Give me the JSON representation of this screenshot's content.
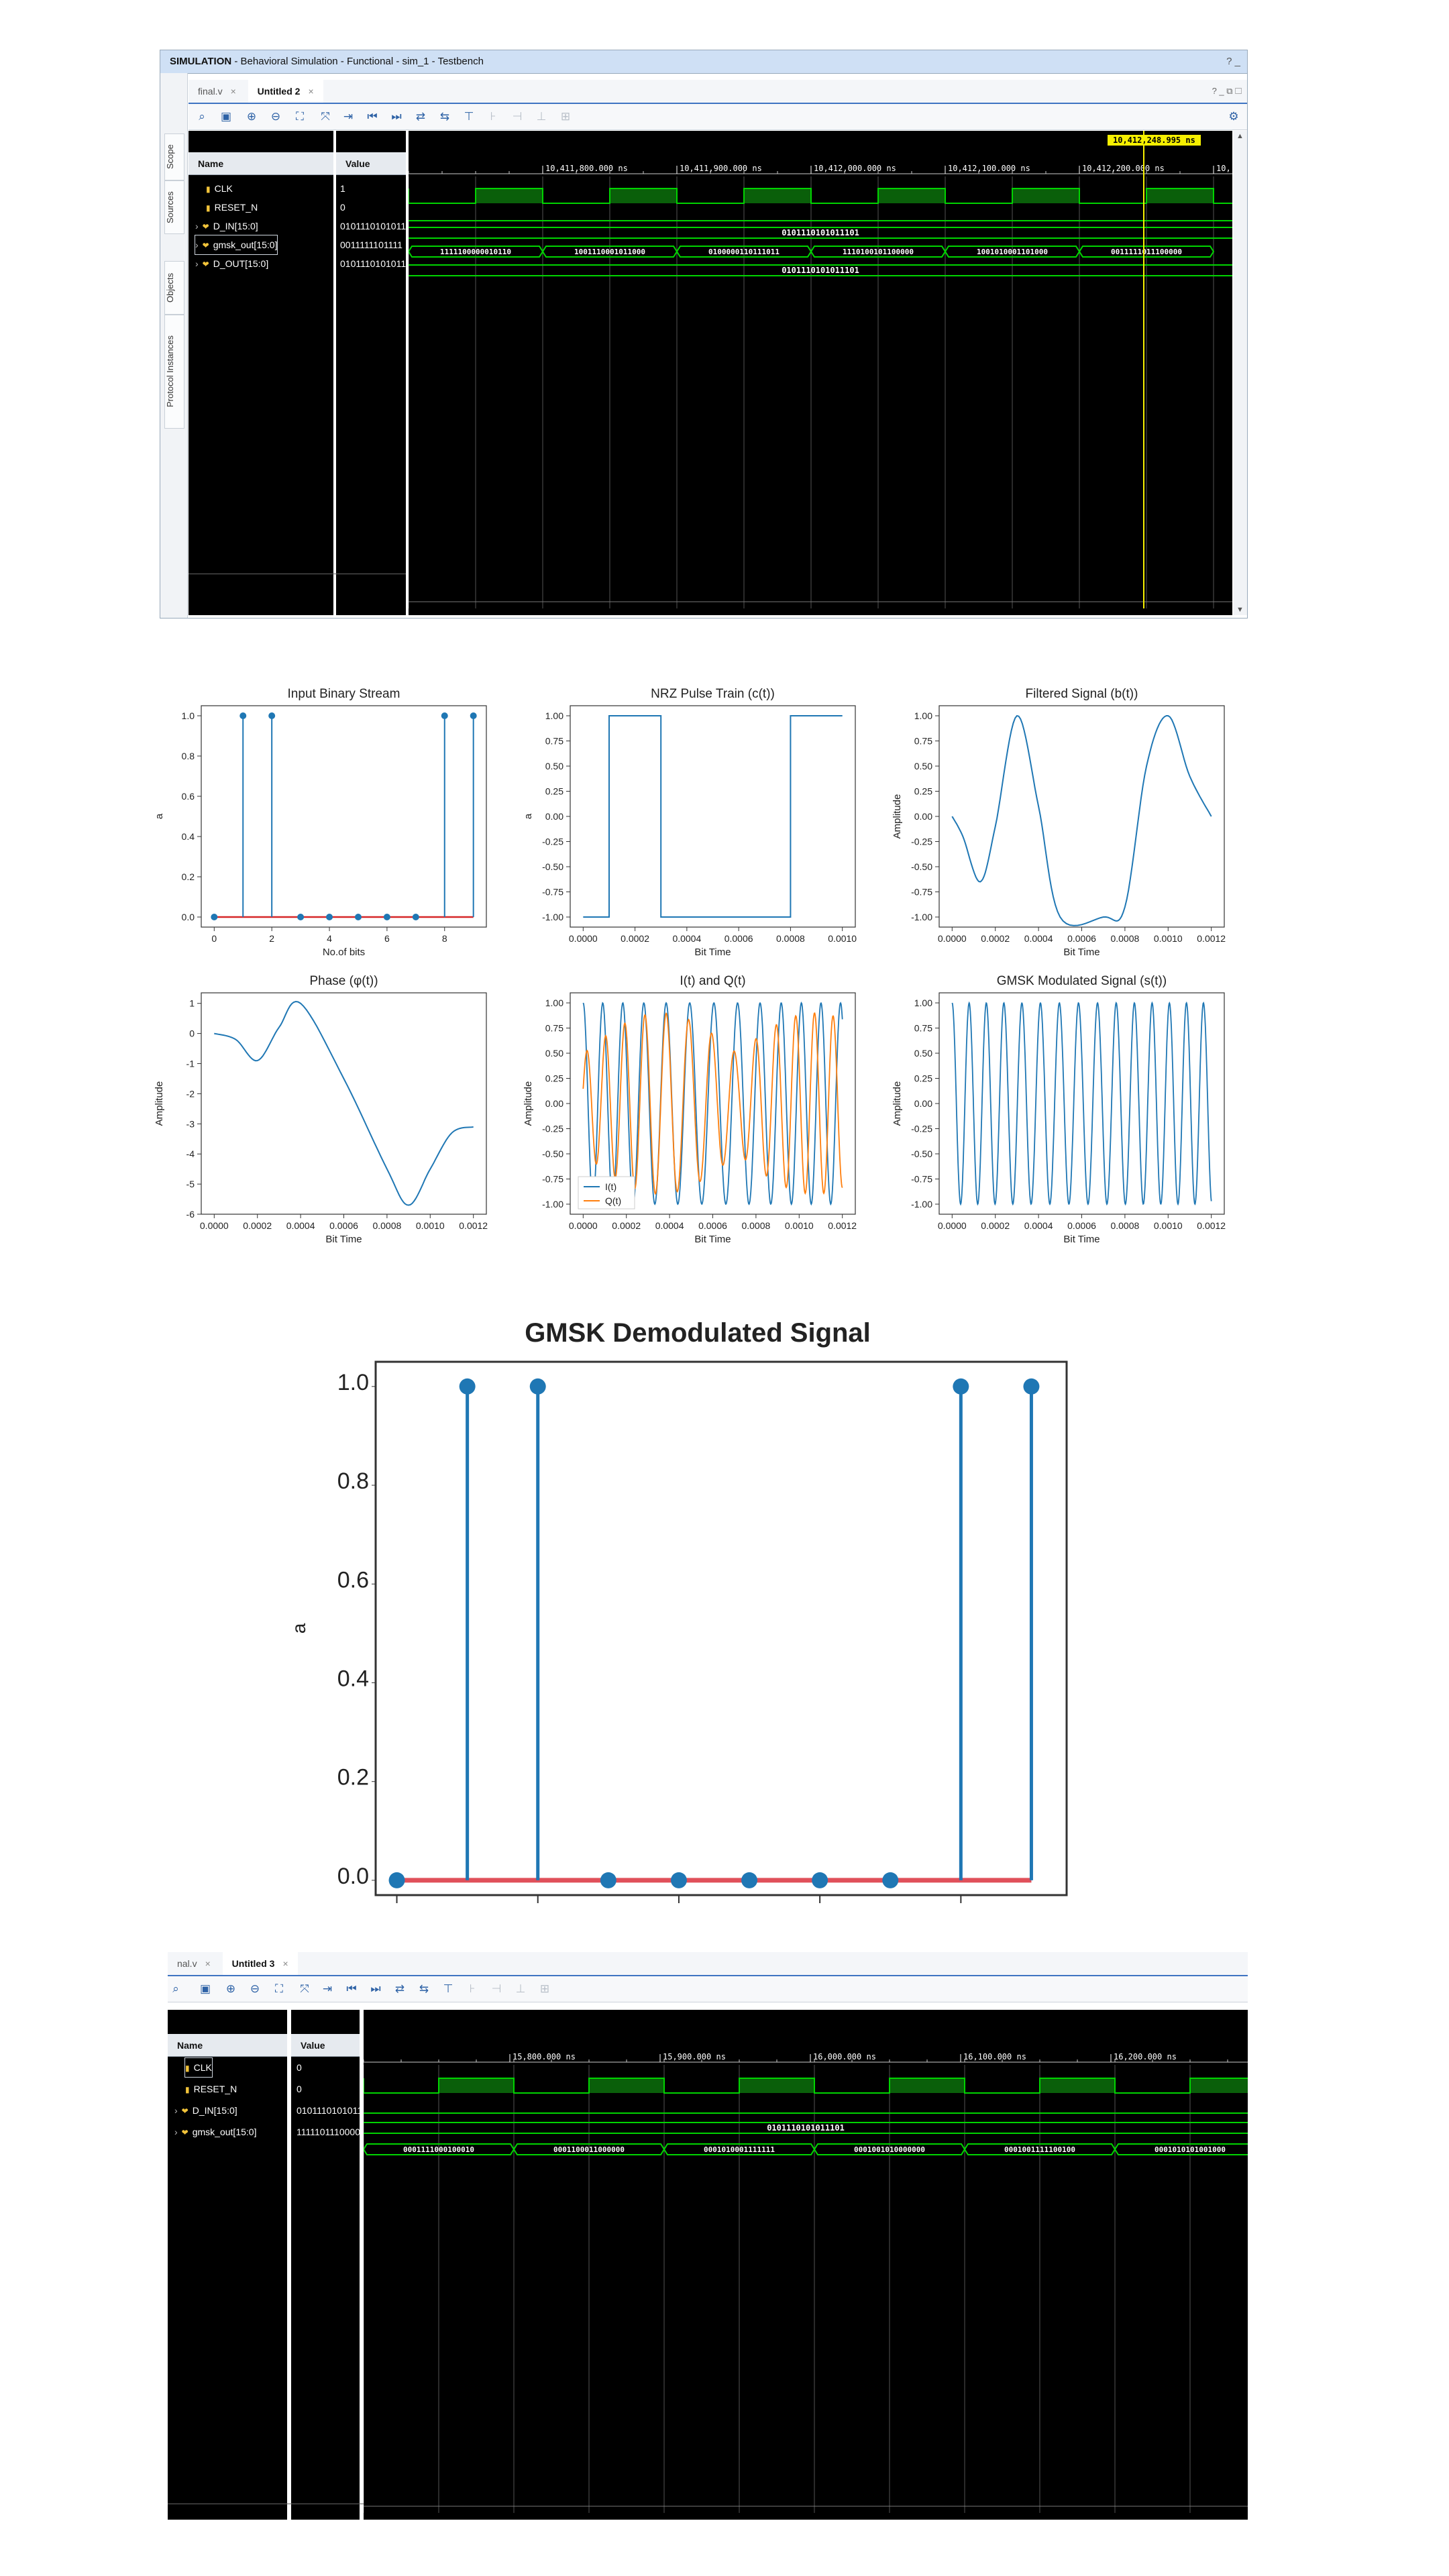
{
  "window1": {
    "title_bold": "SIMULATION",
    "title_rest": " - Behavioral Simulation - Functional - sim_1 - Testbench",
    "help": "? _",
    "side_tabs": [
      "Scope",
      "Sources",
      "Objects",
      "Protocol Instances"
    ],
    "tabs": [
      {
        "label": "final.v"
      },
      {
        "label": "Untitled 2",
        "active": true
      }
    ],
    "corner_controls": "? _ ⧉ ☐",
    "col_name": "Name",
    "col_value": "Value",
    "cursor_time": "10,412,248.995 ns",
    "time_ticks": [
      "10,411,800.000 ns",
      "10,411,900.000 ns",
      "10,412,000.000 ns",
      "10,412,100.000 ns",
      "10,412,200.000 ns",
      "10,"
    ],
    "signals": [
      {
        "name": "CLK",
        "value": "1",
        "kind": "bit"
      },
      {
        "name": "RESET_N",
        "value": "0",
        "kind": "bit"
      },
      {
        "name": "D_IN[15:0]",
        "value": "0101110101011",
        "kind": "bus"
      },
      {
        "name": "gmsk_out[15:0]",
        "value": "0011111101111",
        "kind": "bus",
        "selected": true
      },
      {
        "name": "D_OUT[15:0]",
        "value": "0101110101011",
        "kind": "bus"
      }
    ],
    "din_value": "0101110101011101",
    "dout_value": "0101110101011101",
    "gmsk_segments": [
      "1111100000010110",
      "1001110001011000",
      "0100000110111011",
      "1110100101100000",
      "1001010001101000",
      "0011111011100000"
    ]
  },
  "plots": {
    "titles": [
      "Input Binary Stream",
      "NRZ Pulse Train (c(t))",
      "Filtered Signal (b(t))",
      "Phase (φ(t))",
      "I(t) and Q(t)",
      "GMSK Modulated Signal (s(t))"
    ],
    "xlabels": [
      "No.of bits",
      "Bit Time",
      "Bit Time",
      "Bit Time",
      "Bit Time",
      "Bit Time"
    ],
    "ylabels": [
      "a",
      "a",
      "Amplitude",
      "Amplitude",
      "Amplitude",
      "Amplitude"
    ],
    "legend": [
      "I(t)",
      "Q(t)"
    ]
  },
  "demod": {
    "title": "GMSK Demodulated Signal",
    "ylabel": "a"
  },
  "window2": {
    "tabs": [
      {
        "label": "nal.v"
      },
      {
        "label": "Untitled 3",
        "active": true
      }
    ],
    "col_name": "Name",
    "col_value": "Value",
    "time_ticks": [
      "15,800.000 ns",
      "15,900.000 ns",
      "16,000.000 ns",
      "16,100.000 ns",
      "16,200.000 ns"
    ],
    "signals": [
      {
        "name": "CLK",
        "value": "0",
        "kind": "bit",
        "selected": true
      },
      {
        "name": "RESET_N",
        "value": "0",
        "kind": "bit"
      },
      {
        "name": "D_IN[15:0]",
        "value": "0101110101011",
        "kind": "bus"
      },
      {
        "name": "gmsk_out[15:0]",
        "value": "1111101110000",
        "kind": "bus"
      }
    ],
    "din_value": "0101110101011101",
    "gmsk_segments": [
      "0001111000100010",
      "0001100011000000",
      "0001010001111111",
      "0001001010000000",
      "0001001111100100",
      "0001010101001000"
    ]
  },
  "colors": {
    "line": "#1f77b4",
    "q": "#ff7f0e",
    "baseline": "#d62728",
    "wave": "#00d400",
    "cursor": "#f6f000"
  },
  "chart_data": [
    {
      "type": "stem",
      "title": "Input Binary Stream",
      "xlabel": "No.of bits",
      "ylabel": "a",
      "x": [
        0,
        1,
        2,
        3,
        4,
        5,
        6,
        7,
        8,
        9
      ],
      "values": [
        0,
        1,
        1,
        0,
        0,
        0,
        0,
        0,
        1,
        1
      ],
      "xlim": [
        0,
        9
      ],
      "ylim": [
        0,
        1
      ]
    },
    {
      "type": "line",
      "title": "NRZ Pulse Train (c(t))",
      "xlabel": "Bit Time",
      "ylabel": "a",
      "x": [
        0,
        0.0001,
        0.0001,
        0.0003,
        0.0003,
        0.0008,
        0.0008,
        0.001
      ],
      "y": [
        -1,
        -1,
        1,
        1,
        -1,
        -1,
        1,
        1
      ],
      "xlim": [
        0,
        0.001
      ],
      "ylim": [
        -1,
        1
      ]
    },
    {
      "type": "line",
      "title": "Filtered Signal (b(t))",
      "xlabel": "Bit Time",
      "ylabel": "Amplitude",
      "x": [
        0,
        5e-05,
        0.00013,
        0.0002,
        0.0003,
        0.0004,
        0.0005,
        0.0007,
        0.0008,
        0.0009,
        0.001,
        0.0011,
        0.0012
      ],
      "y": [
        0,
        -0.2,
        -0.65,
        -0.1,
        1,
        0.1,
        -1,
        -1,
        -0.9,
        0.5,
        1,
        0.4,
        0
      ],
      "xlim": [
        0,
        0.0012
      ],
      "ylim": [
        -1,
        1
      ]
    },
    {
      "type": "line",
      "title": "Phase (φ(t))",
      "xlabel": "Bit Time",
      "ylabel": "Amplitude",
      "x": [
        0,
        0.0001,
        0.0002,
        0.0003,
        0.0004,
        0.0006,
        0.0008,
        0.0009,
        0.001,
        0.0011,
        0.0012
      ],
      "y": [
        0,
        -0.2,
        -0.9,
        0.2,
        1,
        -1.5,
        -4.5,
        -5.7,
        -4.5,
        -3.3,
        -3.1
      ],
      "xlim": [
        0,
        0.0012
      ],
      "ylim": [
        -6,
        1
      ]
    },
    {
      "type": "line",
      "title": "I(t) and Q(t)",
      "xlabel": "Bit Time",
      "ylabel": "Amplitude",
      "series": [
        {
          "name": "I(t)"
        },
        {
          "name": "Q(t)"
        }
      ],
      "xlim": [
        0,
        0.0012
      ],
      "ylim": [
        -1,
        1
      ]
    },
    {
      "type": "line",
      "title": "GMSK Modulated Signal (s(t))",
      "xlabel": "Bit Time",
      "ylabel": "Amplitude",
      "xlim": [
        0,
        0.0012
      ],
      "ylim": [
        -1,
        1
      ]
    },
    {
      "type": "stem",
      "title": "GMSK Demodulated Signal",
      "ylabel": "a",
      "x": [
        0,
        1,
        2,
        3,
        4,
        5,
        6,
        7,
        8,
        9
      ],
      "values": [
        0,
        1,
        1,
        0,
        0,
        0,
        0,
        0,
        1,
        1
      ],
      "ylim": [
        0,
        1
      ]
    }
  ]
}
